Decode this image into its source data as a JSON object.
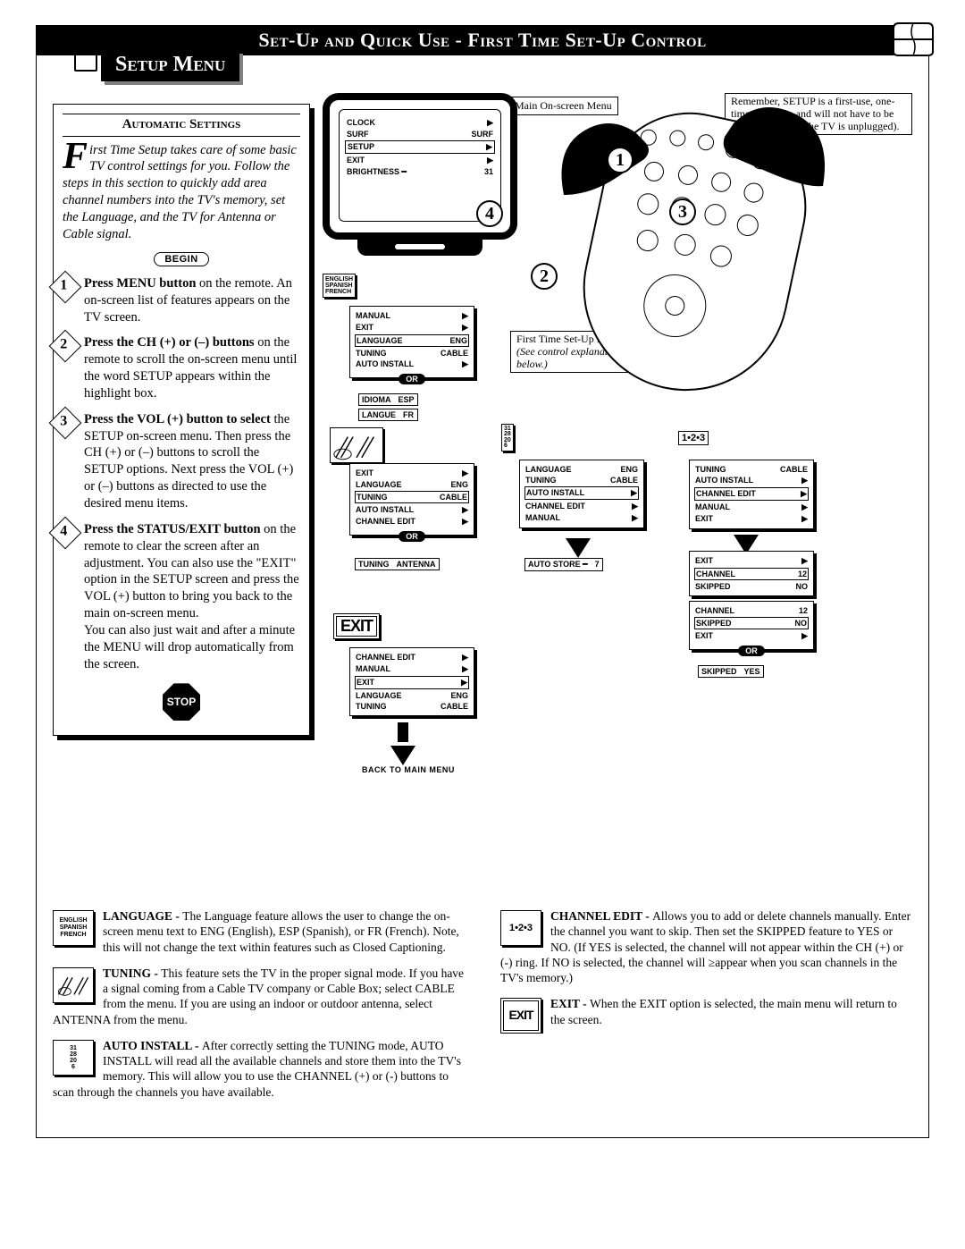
{
  "topbar": "Set-Up and Quick Use - First Time Set-Up Control",
  "setup_banner": "Setup Menu",
  "automatic_settings": "Automatic Settings",
  "intro": {
    "dropcap": "F",
    "rest": "irst Time Setup takes care of some basic TV control settings for you. Follow the steps in this section to quickly add area channel numbers into the TV's memory, set the Language, and the TV for Antenna or Cable signal."
  },
  "begin": "BEGIN",
  "stop": "STOP",
  "steps": [
    {
      "n": "1",
      "bold": "Press MENU button",
      "rest": " on the remote. An on-screen list of features appears on the TV screen."
    },
    {
      "n": "2",
      "bold": "Press the CH (+) or (–) buttons",
      "rest": " on the remote to scroll the on-screen menu until the word SETUP appears within the highlight box."
    },
    {
      "n": "3",
      "bold": "Press the VOL (+) button to select",
      "rest": " the SETUP on-screen menu. Then press the CH (+) or (–) buttons to scroll the SETUP options. Next press the VOL (+) or (–) buttons as directed to use the desired menu items."
    },
    {
      "n": "4",
      "bold": "Press the STATUS/EXIT button",
      "rest": " on the remote to clear the screen after an adjustment. You can also use the \"EXIT\" option in the SETUP screen and press the VOL (+) button to bring you back to the main on-screen menu.\nYou can also just wait and after a minute the MENU will drop automatically from the screen."
    }
  ],
  "callouts": {
    "main_menu": "Main On-screen Menu",
    "reminder": "Remember, SETUP is a first-use, one-time operation and will not have to be repeated (even if the TV is unplugged).",
    "first_time": "First Time Set-Up Menu",
    "first_time_sub": "(See control explanations shown below.)",
    "back": "BACK TO MAIN MENU"
  },
  "bignums": {
    "a": "1",
    "b": "2",
    "c": "3",
    "d": "4"
  },
  "tv_rows": [
    {
      "l": "CLOCK",
      "r": "▶"
    },
    {
      "l": "SURF",
      "r": "SURF"
    },
    {
      "l": "SETUP",
      "r": "▶",
      "boxed": true
    },
    {
      "l": "EXIT",
      "r": "▶"
    },
    {
      "l": "BRIGHTNESS ━",
      "r": "31"
    }
  ],
  "panel_lang": [
    {
      "l": "MANUAL",
      "r": "▶"
    },
    {
      "l": "EXIT",
      "r": "▶"
    },
    {
      "l": "LANGUAGE",
      "r": "ENG",
      "boxed": true
    },
    {
      "l": "TUNING",
      "r": "CABLE"
    },
    {
      "l": "AUTO INSTALL",
      "r": "▶"
    }
  ],
  "lang_tags": [
    {
      "l": "IDIOMA",
      "r": "ESP"
    },
    {
      "l": "LANGUE",
      "r": "FR"
    }
  ],
  "panel_tuning": [
    {
      "l": "EXIT",
      "r": "▶"
    },
    {
      "l": "LANGUAGE",
      "r": "ENG"
    },
    {
      "l": "TUNING",
      "r": "CABLE",
      "boxed": true
    },
    {
      "l": "AUTO INSTALL",
      "r": "▶"
    },
    {
      "l": "CHANNEL EDIT",
      "r": "▶"
    }
  ],
  "tuning_tag": {
    "l": "TUNING",
    "r": "ANTENNA"
  },
  "panel_auto": [
    {
      "l": "LANGUAGE",
      "r": "ENG"
    },
    {
      "l": "TUNING",
      "r": "CABLE"
    },
    {
      "l": "AUTO INSTALL",
      "r": "▶",
      "boxed": true
    },
    {
      "l": "CHANNEL EDIT",
      "r": "▶"
    },
    {
      "l": "MANUAL",
      "r": "▶"
    }
  ],
  "auto_tag": {
    "l": "AUTO STORE ━",
    "r": "7"
  },
  "panel_chedit": [
    {
      "l": "TUNING",
      "r": "CABLE"
    },
    {
      "l": "AUTO INSTALL",
      "r": "▶"
    },
    {
      "l": "CHANNEL EDIT",
      "r": "▶",
      "boxed": true
    },
    {
      "l": "MANUAL",
      "r": "▶"
    },
    {
      "l": "EXIT",
      "r": "▶"
    }
  ],
  "panel_skip1": [
    {
      "l": "EXIT",
      "r": "▶"
    },
    {
      "l": "CHANNEL",
      "r": "12",
      "boxed": true
    },
    {
      "l": "SKIPPED",
      "r": "NO"
    }
  ],
  "panel_skip2": [
    {
      "l": "CHANNEL",
      "r": "12"
    },
    {
      "l": "SKIPPED",
      "r": "NO",
      "boxed": true
    },
    {
      "l": "EXIT",
      "r": "▶"
    }
  ],
  "skip_tag": {
    "l": "SKIPPED",
    "r": "YES"
  },
  "panel_exit": [
    {
      "l": "CHANNEL EDIT",
      "r": "▶"
    },
    {
      "l": "MANUAL",
      "r": "▶"
    },
    {
      "l": "EXIT",
      "r": "▶",
      "boxed": true
    },
    {
      "l": "LANGUAGE",
      "r": "ENG"
    },
    {
      "l": "TUNING",
      "r": "CABLE"
    }
  ],
  "tag_123": "1•2•3",
  "icon_counter": "31\n28\n20\n6",
  "icon_langs": "ENGLISH\nSPANISH\nFRENCH",
  "glossary": {
    "language": {
      "h": "LANGUAGE - ",
      "t": "The Language feature allows the user to change the on-screen menu text to ENG (English), ESP (Spanish), or FR (French). Note, this will not change the text within features such as Closed Captioning."
    },
    "tuning": {
      "h": "TUNING - ",
      "t": "This feature sets the TV in the proper signal mode. If you have a signal coming from a Cable TV company or Cable Box; select CABLE from the menu. If you are using an indoor or outdoor antenna, select ANTENNA from the menu."
    },
    "auto": {
      "h": "AUTO INSTALL - ",
      "t": "After correctly setting the TUNING mode, AUTO INSTALL will read all the available channels and store them into the TV's memory. This will allow you to use the CHANNEL (+) or (-) buttons to scan through the channels you have available."
    },
    "chedit": {
      "h": "CHANNEL EDIT - ",
      "t": "Allows you to add or delete channels manually. Enter the channel you want to skip. Then set the SKIPPED feature to YES or NO. (If YES is selected, the channel will not appear within the CH (+) or (-) ring. If NO is selected, the channel will ≥appear when you scan channels in the TV's memory.)"
    },
    "exit": {
      "h": "EXIT - ",
      "t": "When the EXIT option is selected, the main menu will return to the screen."
    }
  },
  "exit_label": "EXIT"
}
